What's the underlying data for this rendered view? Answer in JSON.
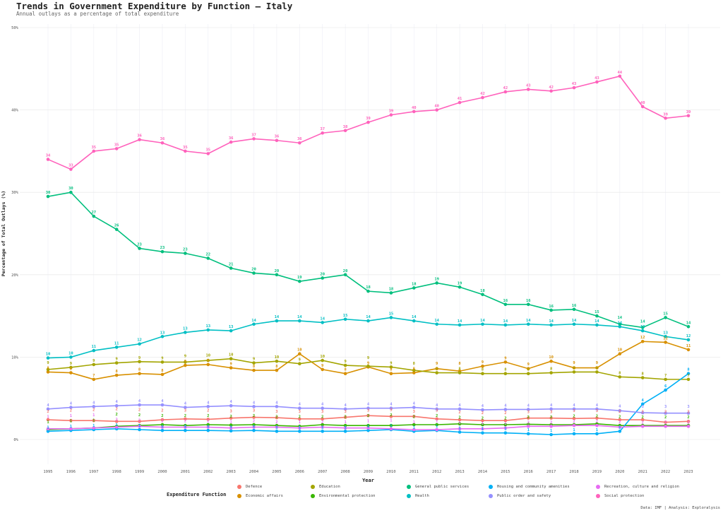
{
  "chart_data": {
    "type": "line",
    "title": "Trends in Government Expenditure by Function — Italy",
    "subtitle": "Annual outlays as a percentage of total expenditure",
    "xlabel": "Year",
    "ylabel": "Percentage of Total Outlays (%)",
    "ylim": [
      0,
      50
    ],
    "yticks": [
      "0%",
      "10%",
      "20%",
      "30%",
      "40%",
      "50%"
    ],
    "x": [
      1995,
      1996,
      1997,
      1998,
      1999,
      2000,
      2001,
      2002,
      2003,
      2004,
      2005,
      2006,
      2007,
      2008,
      2009,
      2010,
      2011,
      2012,
      2013,
      2014,
      2015,
      2016,
      2017,
      2018,
      2019,
      2020,
      2021,
      2022,
      2023
    ],
    "legend_title": "Expenditure Function",
    "legend_placement": "bottom",
    "series": [
      {
        "name": "Defence",
        "color": "#F8766D",
        "values": [
          2.4,
          2.3,
          2.3,
          2.2,
          2.2,
          2.4,
          2.5,
          2.45,
          2.6,
          2.7,
          2.65,
          2.5,
          2.5,
          2.7,
          2.9,
          2.8,
          2.8,
          2.5,
          2.4,
          2.3,
          2.3,
          2.6,
          2.6,
          2.55,
          2.6,
          2.4,
          2.4,
          2.1,
          2.2
        ]
      },
      {
        "name": "Economic affairs",
        "color": "#D89000",
        "values": [
          8.2,
          8.1,
          7.3,
          7.8,
          8.0,
          7.9,
          9.0,
          9.1,
          8.7,
          8.4,
          8.4,
          10.4,
          8.5,
          8.0,
          8.8,
          8.0,
          8.1,
          8.6,
          8.3,
          8.9,
          9.4,
          8.6,
          9.5,
          8.7,
          8.7,
          10.4,
          11.9,
          11.8,
          10.9
        ]
      },
      {
        "name": "Education",
        "color": "#A3A500",
        "values": [
          8.5,
          8.75,
          9.1,
          9.3,
          9.45,
          9.4,
          9.4,
          9.6,
          9.8,
          9.3,
          9.5,
          9.2,
          9.6,
          9.0,
          8.9,
          8.8,
          8.4,
          8.1,
          8.1,
          8.0,
          8.0,
          8.0,
          8.1,
          8.2,
          8.2,
          7.6,
          7.5,
          7.3,
          7.3
        ]
      },
      {
        "name": "Environmental protection",
        "color": "#39B600",
        "values": [
          1.2,
          1.3,
          1.4,
          1.6,
          1.7,
          1.8,
          1.7,
          1.8,
          1.75,
          1.8,
          1.7,
          1.6,
          1.8,
          1.7,
          1.7,
          1.7,
          1.8,
          1.8,
          1.9,
          1.8,
          1.8,
          1.85,
          1.8,
          1.8,
          1.9,
          1.7,
          1.7,
          1.7,
          1.7
        ]
      },
      {
        "name": "General public services",
        "color": "#00BF7D",
        "values": [
          29.5,
          30.0,
          27.1,
          25.5,
          23.2,
          22.8,
          22.6,
          22.0,
          20.8,
          20.2,
          20.0,
          19.2,
          19.6,
          20.0,
          18.0,
          17.8,
          18.4,
          19.0,
          18.5,
          17.6,
          16.4,
          16.4,
          15.7,
          15.8,
          15.0,
          14.0,
          13.6,
          14.8,
          13.7
        ]
      },
      {
        "name": "Health",
        "color": "#00BFC4",
        "values": [
          9.9,
          10.0,
          10.8,
          11.2,
          11.6,
          12.5,
          13.0,
          13.3,
          13.2,
          14.0,
          14.4,
          14.4,
          14.2,
          14.6,
          14.4,
          14.8,
          14.4,
          14.0,
          13.9,
          14.0,
          13.9,
          14.0,
          13.9,
          14.0,
          13.9,
          13.7,
          13.2,
          12.5,
          12.1
        ]
      },
      {
        "name": "Housing and community amenities",
        "color": "#00B0F6",
        "values": [
          1.0,
          1.1,
          1.2,
          1.3,
          1.2,
          1.1,
          1.1,
          1.1,
          1.05,
          1.1,
          1.0,
          1.0,
          1.0,
          1.0,
          1.1,
          1.2,
          1.0,
          1.1,
          0.9,
          0.8,
          0.8,
          0.7,
          0.6,
          0.7,
          0.7,
          1.0,
          4.3,
          6.0,
          8.0
        ]
      },
      {
        "name": "Public order and safety",
        "color": "#9590FF",
        "values": [
          3.7,
          3.9,
          4.0,
          4.1,
          4.2,
          4.2,
          3.9,
          4.0,
          4.1,
          4.0,
          4.0,
          3.8,
          3.8,
          3.7,
          3.8,
          3.8,
          3.9,
          3.7,
          3.7,
          3.6,
          3.65,
          3.65,
          3.7,
          3.7,
          3.7,
          3.5,
          3.25,
          3.2,
          3.2
        ]
      },
      {
        "name": "Recreation, culture and religion",
        "color": "#E76BF3",
        "values": [
          1.3,
          1.3,
          1.4,
          1.5,
          1.6,
          1.5,
          1.5,
          1.5,
          1.4,
          1.5,
          1.5,
          1.4,
          1.5,
          1.4,
          1.4,
          1.3,
          1.2,
          1.2,
          1.3,
          1.3,
          1.4,
          1.6,
          1.6,
          1.7,
          1.7,
          1.5,
          1.6,
          1.6,
          1.6
        ]
      },
      {
        "name": "Social protection",
        "color": "#FF62BC",
        "values": [
          34.0,
          32.8,
          35.0,
          35.3,
          36.4,
          36.0,
          35.0,
          34.7,
          36.1,
          36.5,
          36.3,
          36.0,
          37.2,
          37.5,
          38.5,
          39.4,
          39.8,
          40.0,
          40.9,
          41.5,
          42.2,
          42.5,
          42.3,
          42.7,
          43.4,
          44.1,
          40.4,
          39.0,
          39.3
        ]
      }
    ],
    "source_note": "Data: IMF | Analysis: Exploralysis"
  }
}
